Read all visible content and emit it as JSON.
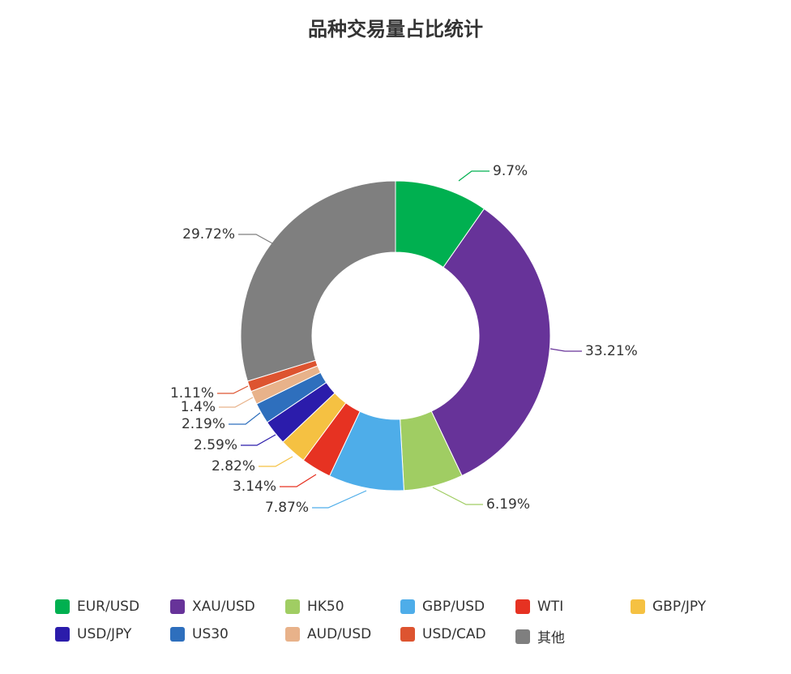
{
  "chart_data": {
    "type": "pie",
    "donut": true,
    "title": "品种交易量占比统计",
    "legend_position": "bottom",
    "slices": [
      {
        "name": "EUR/USD",
        "value": 9.7,
        "label": "9.7%",
        "color": "#00b050"
      },
      {
        "name": "XAU/USD",
        "value": 33.21,
        "label": "33.21%",
        "color": "#673399"
      },
      {
        "name": "HK50",
        "value": 6.19,
        "label": "6.19%",
        "color": "#a0cd63"
      },
      {
        "name": "GBP/USD",
        "value": 7.87,
        "label": "7.87%",
        "color": "#4eade9"
      },
      {
        "name": "WTI",
        "value": 3.14,
        "label": "3.14%",
        "color": "#e63222"
      },
      {
        "name": "GBP/JPY",
        "value": 2.82,
        "label": "2.82%",
        "color": "#f5c142"
      },
      {
        "name": "USD/JPY",
        "value": 2.59,
        "label": "2.59%",
        "color": "#2b1cab"
      },
      {
        "name": "US30",
        "value": 2.19,
        "label": "2.19%",
        "color": "#2e6fbd"
      },
      {
        "name": "AUD/USD",
        "value": 1.4,
        "label": "1.4%",
        "color": "#e8b28a"
      },
      {
        "name": "USD/CAD",
        "value": 1.11,
        "label": "1.11%",
        "color": "#dd5430"
      },
      {
        "name": "其他",
        "value": 29.72,
        "label": "29.72%",
        "color": "#7f7f7f"
      }
    ]
  }
}
